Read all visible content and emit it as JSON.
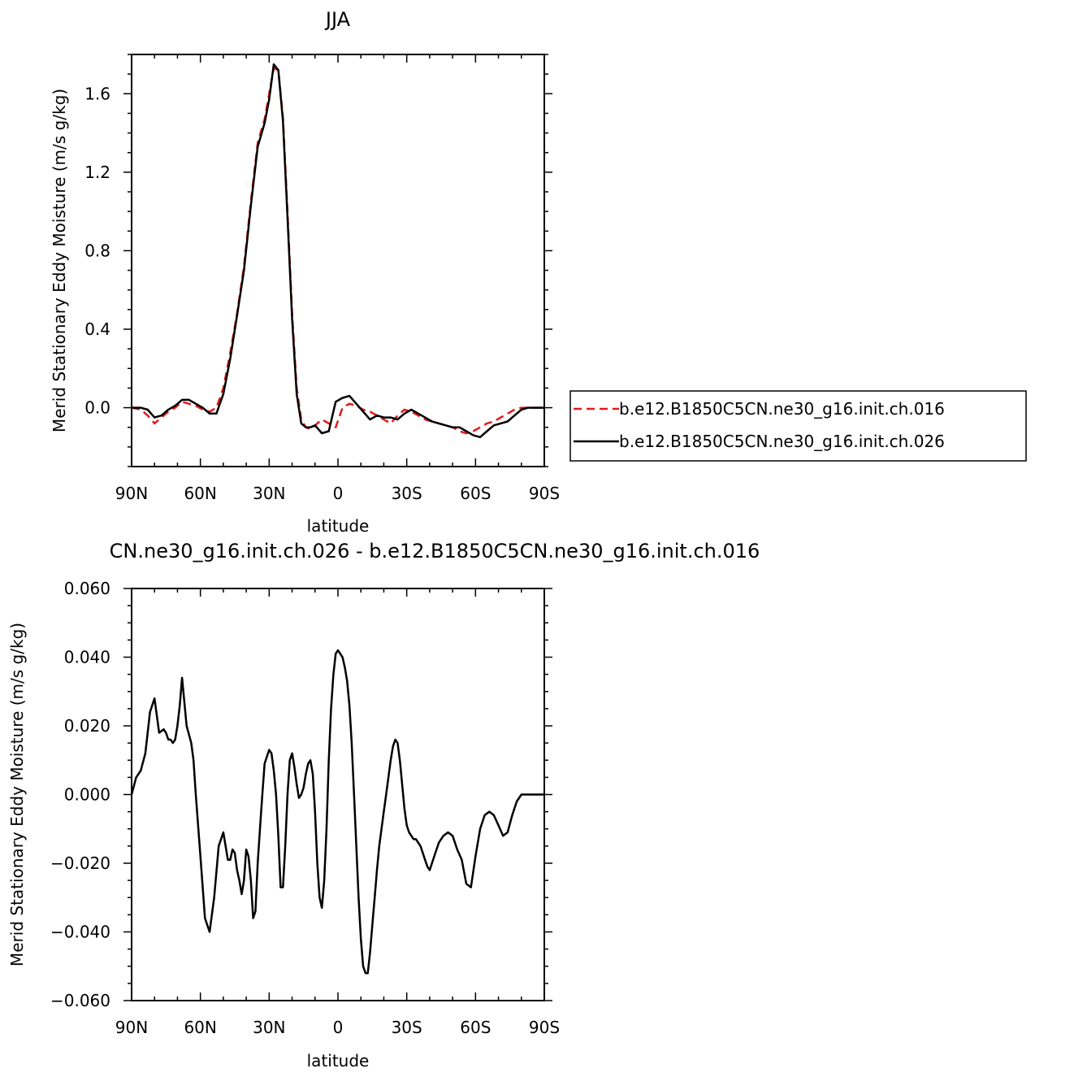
{
  "chart_data": [
    {
      "type": "line",
      "title": "JJA",
      "xlabel": "latitude",
      "ylabel": "Merid Stationary Eddy Moisture (m/s g/kg)",
      "xlim": [
        90,
        -90
      ],
      "ylim": [
        -0.3,
        1.8
      ],
      "x_ticks": [
        90,
        60,
        30,
        0,
        -30,
        -60,
        -90
      ],
      "x_tick_labels": [
        "90N",
        "60N",
        "30N",
        "0",
        "30S",
        "60S",
        "90S"
      ],
      "y_ticks": [
        0.0,
        0.4,
        0.8,
        1.2,
        1.6
      ],
      "y_tick_labels": [
        "0.0",
        "0.4",
        "0.8",
        "1.2",
        "1.6"
      ],
      "legend_position": "right",
      "series": [
        {
          "name": "b.e12.B1850C5CN.ne30_g16.init.ch.016",
          "color": "#e41a1c",
          "dash": "dashed",
          "x": [
            90,
            86,
            83,
            80,
            77,
            74,
            71,
            68,
            65,
            62,
            59,
            56,
            53,
            50,
            47,
            44,
            41,
            38,
            35,
            32,
            30,
            28,
            26,
            24,
            22,
            20,
            18,
            16,
            14,
            12,
            10,
            7,
            4,
            1,
            -2,
            -5,
            -8,
            -11,
            -14,
            -17,
            -20,
            -23,
            -26,
            -29,
            -32,
            -35,
            -38,
            -41,
            -44,
            -47,
            -50,
            -53,
            -56,
            -59,
            -62,
            -65,
            -68,
            -71,
            -74,
            -77,
            -80,
            -83,
            -86,
            -90
          ],
          "y": [
            0.0,
            -0.01,
            -0.04,
            -0.08,
            -0.05,
            -0.02,
            0.0,
            0.03,
            0.02,
            0.01,
            -0.01,
            -0.02,
            0.0,
            0.1,
            0.28,
            0.48,
            0.72,
            1.05,
            1.35,
            1.47,
            1.6,
            1.73,
            1.72,
            1.48,
            1.0,
            0.48,
            0.1,
            -0.06,
            -0.1,
            -0.11,
            -0.09,
            -0.06,
            -0.08,
            -0.1,
            0.0,
            0.02,
            0.01,
            -0.01,
            -0.02,
            -0.04,
            -0.06,
            -0.08,
            -0.04,
            -0.01,
            -0.02,
            -0.04,
            -0.06,
            -0.07,
            -0.08,
            -0.09,
            -0.1,
            -0.12,
            -0.13,
            -0.12,
            -0.1,
            -0.08,
            -0.07,
            -0.05,
            -0.03,
            -0.01,
            0.0,
            0.0,
            0.0,
            0.0
          ]
        },
        {
          "name": "b.e12.B1850C5CN.ne30_g16.init.ch.026",
          "color": "#000000",
          "dash": "solid",
          "x": [
            90,
            86,
            83,
            80,
            77,
            74,
            71,
            68,
            65,
            62,
            59,
            56,
            53,
            50,
            47,
            44,
            41,
            38,
            35,
            32,
            30,
            28,
            26,
            24,
            22,
            20,
            18,
            16,
            14,
            12,
            10,
            7,
            4,
            1,
            -2,
            -5,
            -8,
            -11,
            -14,
            -17,
            -20,
            -23,
            -26,
            -29,
            -32,
            -35,
            -38,
            -41,
            -44,
            -47,
            -50,
            -53,
            -56,
            -59,
            -62,
            -65,
            -68,
            -71,
            -74,
            -77,
            -80,
            -83,
            -86,
            -90
          ],
          "y": [
            0.0,
            0.0,
            -0.01,
            -0.05,
            -0.04,
            -0.01,
            0.01,
            0.04,
            0.04,
            0.02,
            0.0,
            -0.03,
            -0.03,
            0.07,
            0.25,
            0.47,
            0.7,
            1.03,
            1.33,
            1.45,
            1.57,
            1.75,
            1.72,
            1.46,
            0.97,
            0.45,
            0.07,
            -0.08,
            -0.1,
            -0.1,
            -0.09,
            -0.13,
            -0.12,
            0.03,
            0.05,
            0.06,
            0.02,
            -0.02,
            -0.06,
            -0.04,
            -0.05,
            -0.05,
            -0.06,
            -0.03,
            -0.01,
            -0.03,
            -0.05,
            -0.07,
            -0.08,
            -0.09,
            -0.1,
            -0.1,
            -0.12,
            -0.14,
            -0.15,
            -0.12,
            -0.09,
            -0.08,
            -0.07,
            -0.04,
            -0.01,
            0.0,
            0.0,
            0.0
          ]
        }
      ]
    },
    {
      "type": "line",
      "title": "CN.ne30_g16.init.ch.026 - b.e12.B1850C5CN.ne30_g16.init.ch.016",
      "xlabel": "latitude",
      "ylabel": "Merid Stationary Eddy Moisture (m/s g/kg)",
      "xlim": [
        90,
        -90
      ],
      "ylim": [
        -0.06,
        0.06
      ],
      "x_ticks": [
        90,
        60,
        30,
        0,
        -30,
        -60,
        -90
      ],
      "x_tick_labels": [
        "90N",
        "60N",
        "30N",
        "0",
        "30S",
        "60S",
        "90S"
      ],
      "y_ticks": [
        0.06,
        0.04,
        0.02,
        0.0,
        -0.02,
        -0.04,
        -0.06
      ],
      "y_tick_labels": [
        "0.060",
        "0.040",
        "0.020",
        "0.000",
        "−0.020",
        "−0.040",
        "−0.060"
      ],
      "series": [
        {
          "color": "#000000",
          "dash": "solid",
          "x": [
            90,
            88,
            86,
            84,
            82,
            80,
            78,
            76,
            75,
            74,
            73,
            72,
            71,
            70,
            69,
            68,
            66,
            64,
            63,
            62,
            60,
            58,
            56,
            54,
            52,
            50,
            49,
            48,
            47,
            46,
            45,
            44,
            43,
            42,
            41,
            40,
            39,
            38,
            37,
            36,
            35,
            34,
            33,
            32,
            31,
            30,
            29,
            28,
            27,
            26,
            25,
            24,
            23,
            22,
            21,
            20,
            19,
            18,
            17,
            16,
            15,
            14,
            13,
            12,
            11,
            10,
            9,
            8,
            7,
            6,
            5,
            4,
            3,
            2,
            1,
            0,
            -1,
            -2,
            -3,
            -4,
            -5,
            -6,
            -7,
            -8,
            -9,
            -10,
            -11,
            -12,
            -13,
            -14,
            -15,
            -16,
            -17,
            -18,
            -19,
            -20,
            -21,
            -22,
            -23,
            -24,
            -25,
            -26,
            -27,
            -28,
            -29,
            -30,
            -31,
            -32,
            -33,
            -34,
            -35,
            -36,
            -37,
            -38,
            -39,
            -40,
            -42,
            -44,
            -46,
            -48,
            -50,
            -52,
            -54,
            -56,
            -58,
            -60,
            -62,
            -64,
            -66,
            -68,
            -70,
            -72,
            -74,
            -76,
            -78,
            -80,
            -82,
            -84,
            -86,
            -88,
            -90
          ],
          "y": [
            0.0,
            0.005,
            0.007,
            0.012,
            0.024,
            0.028,
            0.018,
            0.019,
            0.018,
            0.016,
            0.016,
            0.015,
            0.016,
            0.02,
            0.026,
            0.034,
            0.02,
            0.015,
            0.01,
            0.0,
            -0.018,
            -0.036,
            -0.04,
            -0.03,
            -0.015,
            -0.011,
            -0.015,
            -0.019,
            -0.019,
            -0.016,
            -0.017,
            -0.022,
            -0.025,
            -0.029,
            -0.025,
            -0.016,
            -0.018,
            -0.025,
            -0.036,
            -0.034,
            -0.02,
            -0.01,
            0.0,
            0.009,
            0.011,
            0.013,
            0.012,
            0.007,
            0.0,
            -0.012,
            -0.027,
            -0.027,
            -0.015,
            0.0,
            0.01,
            0.012,
            0.008,
            0.003,
            -0.001,
            0.0,
            0.002,
            0.006,
            0.009,
            0.01,
            0.006,
            -0.005,
            -0.02,
            -0.03,
            -0.033,
            -0.025,
            -0.01,
            0.01,
            0.025,
            0.035,
            0.041,
            0.042,
            0.041,
            0.04,
            0.037,
            0.033,
            0.026,
            0.015,
            0.0,
            -0.015,
            -0.03,
            -0.042,
            -0.05,
            -0.052,
            -0.052,
            -0.046,
            -0.038,
            -0.03,
            -0.022,
            -0.015,
            -0.01,
            -0.005,
            0.0,
            0.005,
            0.01,
            0.014,
            0.016,
            0.015,
            0.01,
            0.003,
            -0.004,
            -0.009,
            -0.011,
            -0.012,
            -0.013,
            -0.013,
            -0.014,
            -0.015,
            -0.017,
            -0.019,
            -0.021,
            -0.022,
            -0.018,
            -0.014,
            -0.012,
            -0.011,
            -0.012,
            -0.016,
            -0.019,
            -0.026,
            -0.027,
            -0.018,
            -0.01,
            -0.006,
            -0.005,
            -0.006,
            -0.009,
            -0.012,
            -0.011,
            -0.006,
            -0.002,
            0.0,
            0.0,
            0.0,
            0.0,
            0.0,
            0.0
          ]
        }
      ]
    }
  ]
}
